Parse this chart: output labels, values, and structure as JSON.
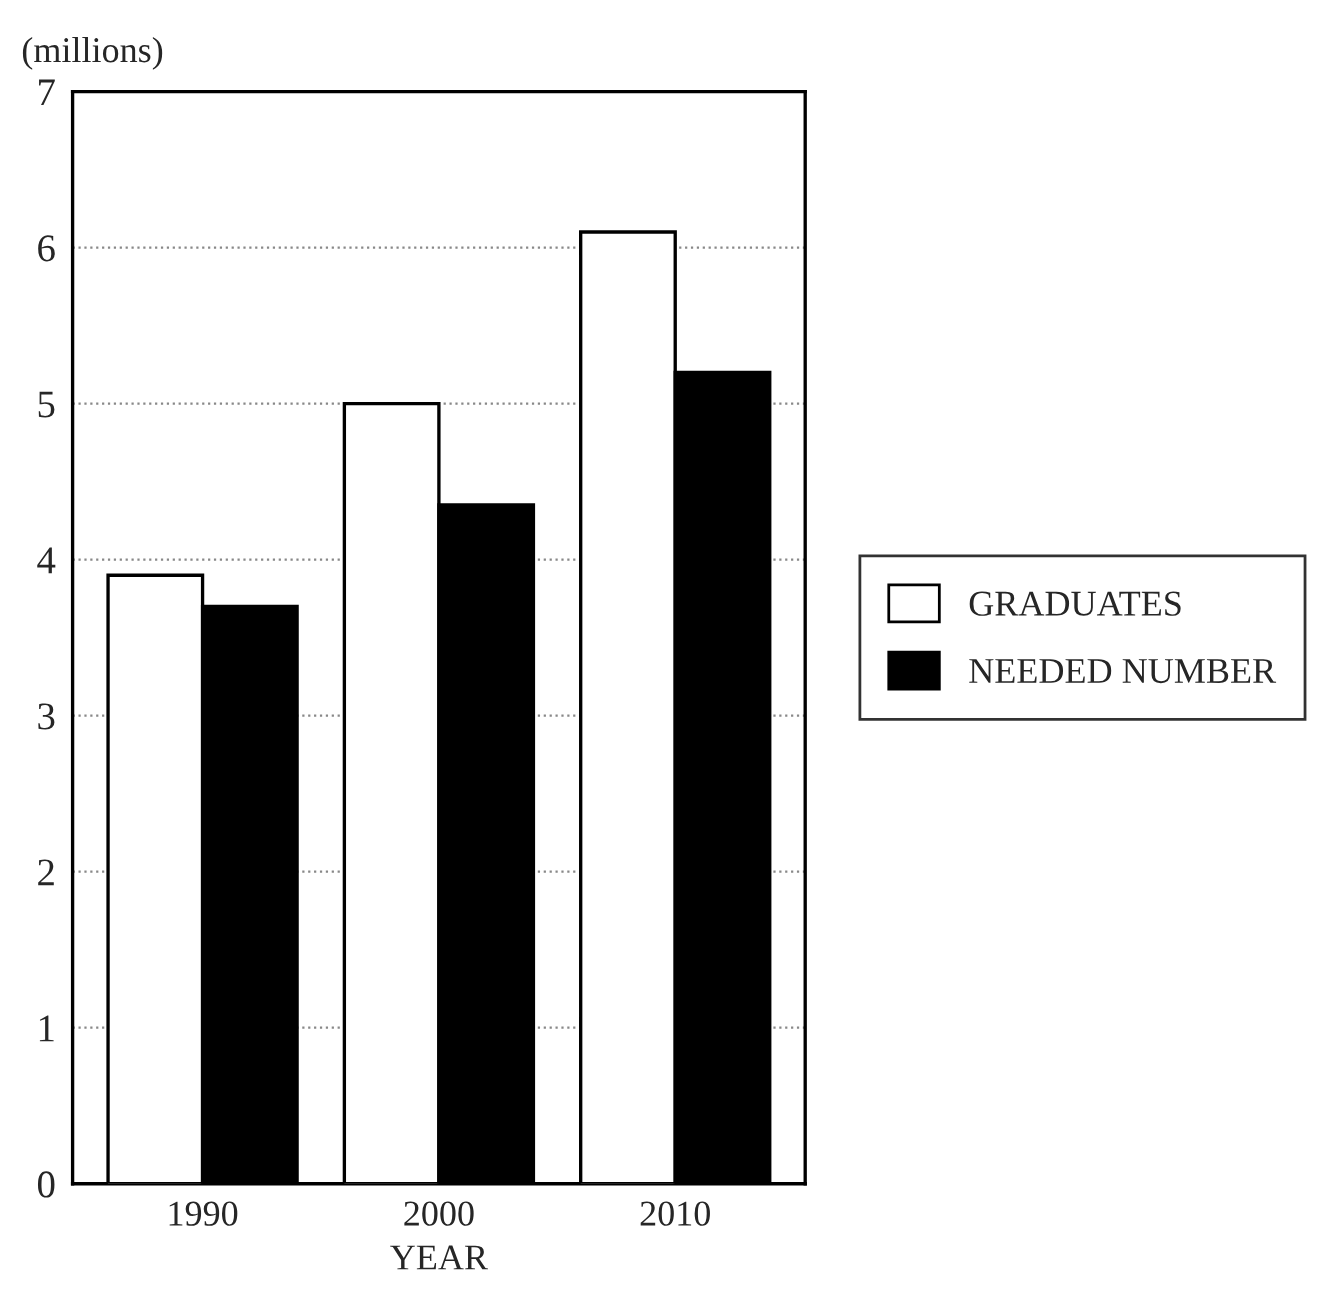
{
  "chart_data": {
    "type": "bar",
    "ylabel": "(millions)",
    "xlabel": "YEAR",
    "categories": [
      "1990",
      "2000",
      "2010"
    ],
    "series": [
      {
        "name": "GRADUATES",
        "color": "#ffffff",
        "values": [
          3.9,
          5.0,
          6.1
        ]
      },
      {
        "name": "NEEDED NUMBER",
        "color": "#000000",
        "values": [
          3.7,
          4.35,
          5.2
        ]
      }
    ],
    "ylim": [
      0,
      7
    ],
    "yticks": [
      0,
      1,
      2,
      3,
      4,
      5,
      6,
      7
    ],
    "grid": "y",
    "legend": "right"
  }
}
